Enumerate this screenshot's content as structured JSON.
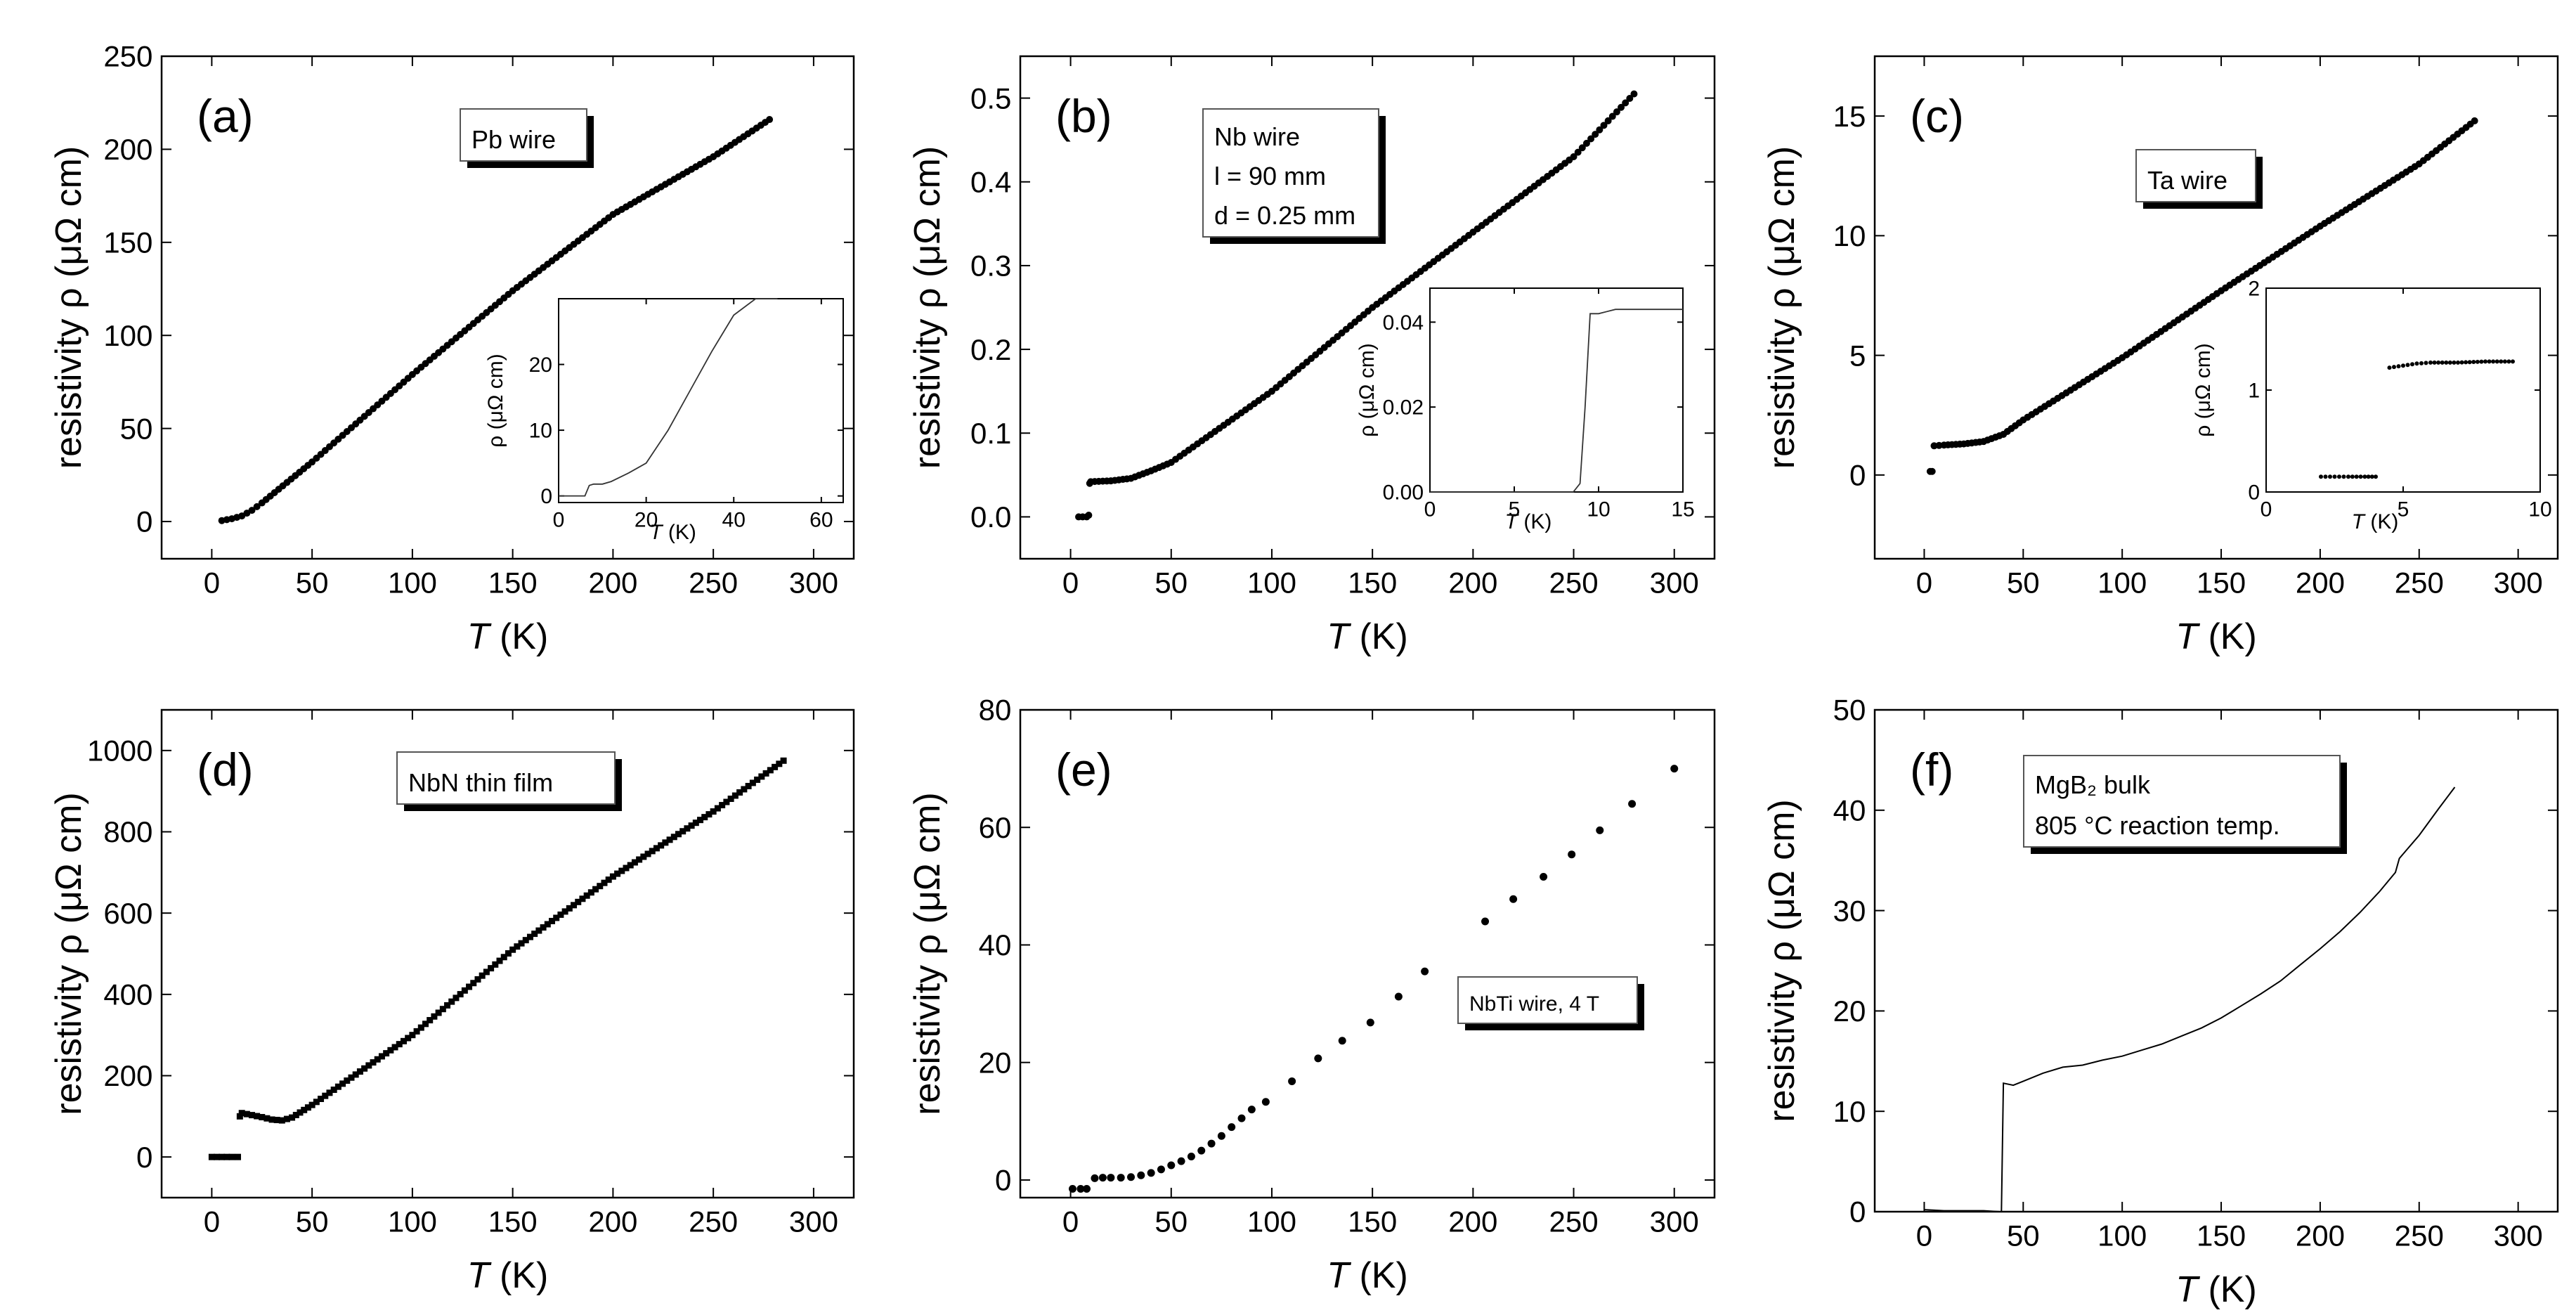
{
  "charts": [
    {
      "panel_label": "(a)",
      "legend_lines": [
        "Pb wire"
      ],
      "xlabel": "T",
      "xunit": "(K)",
      "ylabel": "resistivity ρ (μΩ cm)",
      "xlim": [
        -25,
        320
      ],
      "ylim": [
        -20,
        250
      ],
      "xticks": [
        0,
        50,
        100,
        150,
        200,
        250,
        300
      ],
      "yticks": [
        0,
        50,
        100,
        150,
        200,
        250
      ],
      "inset": {
        "xlim": [
          0,
          65
        ],
        "ylim": [
          -1,
          30
        ],
        "xticks": [
          0,
          20,
          40,
          60
        ],
        "yticks": [
          0,
          10,
          20
        ],
        "ylabel": "ρ (μΩ cm)",
        "xlabel": "T",
        "xunit": "(K)"
      }
    },
    {
      "panel_label": "(b)",
      "legend_lines": [
        "Nb wire",
        "l = 90 mm",
        "d = 0.25 mm"
      ],
      "xlabel": "T",
      "xunit": "(K)",
      "ylabel": "resistivity ρ (μΩ cm)",
      "xlim": [
        -25,
        320
      ],
      "ylim": [
        -0.05,
        0.55
      ],
      "xticks": [
        0,
        50,
        100,
        150,
        200,
        250,
        300
      ],
      "yticks": [
        "0.0",
        "0.1",
        "0.2",
        "0.3",
        "0.4",
        "0.5"
      ],
      "inset": {
        "xlim": [
          0,
          15
        ],
        "ylim": [
          0,
          0.048
        ],
        "xticks": [
          0,
          5,
          10,
          15
        ],
        "yticks": [
          "0.00",
          "0.02",
          "0.04"
        ],
        "ylabel": "ρ (μΩ cm)",
        "xlabel": "T",
        "xunit": "(K)"
      }
    },
    {
      "panel_label": "(c)",
      "legend_lines": [
        "Ta wire"
      ],
      "xlabel": "T",
      "xunit": "(K)",
      "ylabel": "resistivity ρ (μΩ cm)",
      "xlim": [
        -25,
        320
      ],
      "ylim": [
        -3.5,
        17.5
      ],
      "xticks": [
        0,
        50,
        100,
        150,
        200,
        250,
        300
      ],
      "yticks": [
        0,
        5,
        10,
        15
      ],
      "inset": {
        "xlim": [
          0,
          10
        ],
        "ylim": [
          0,
          2
        ],
        "xticks": [
          0,
          5,
          10
        ],
        "yticks": [
          0,
          1,
          2
        ],
        "ylabel": "ρ (μΩ cm)",
        "xlabel": "T",
        "xunit": "(K)"
      }
    },
    {
      "panel_label": "(d)",
      "legend_lines": [
        "NbN thin film"
      ],
      "xlabel": "T",
      "xunit": "(K)",
      "ylabel": "resistivity ρ (μΩ cm)",
      "xlim": [
        -25,
        320
      ],
      "ylim": [
        -100,
        1100
      ],
      "xticks": [
        0,
        50,
        100,
        150,
        200,
        250,
        300
      ],
      "yticks": [
        0,
        200,
        400,
        600,
        800,
        1000
      ]
    },
    {
      "panel_label": "(e)",
      "legend_lines": [
        "NbTi wire, 4 T"
      ],
      "xlabel": "T",
      "xunit": "(K)",
      "ylabel": "resistivity ρ (μΩ cm)",
      "xlim": [
        -25,
        320
      ],
      "ylim": [
        -3,
        80
      ],
      "xticks": [
        0,
        50,
        100,
        150,
        200,
        250,
        300
      ],
      "yticks": [
        0,
        20,
        40,
        60,
        80
      ]
    },
    {
      "panel_label": "(f)",
      "legend_lines": [
        "MgB₂ bulk",
        "805 °C reaction temp."
      ],
      "xlabel": "T",
      "xunit": "(K)",
      "ylabel": "resistivity ρ (μΩ cm)",
      "xlim": [
        -25,
        320
      ],
      "ylim": [
        0,
        50
      ],
      "xticks": [
        0,
        50,
        100,
        150,
        200,
        250,
        300
      ],
      "yticks": [
        0,
        10,
        20,
        30,
        40,
        50
      ]
    }
  ],
  "chart_data": [
    {
      "type": "scatter",
      "panel": "(a)",
      "series": [
        {
          "x": [
            5,
            10,
            15,
            20,
            25,
            50,
            100,
            150,
            200,
            250,
            278
          ],
          "y": [
            0.5,
            1.5,
            3,
            6,
            10,
            32,
            79,
            124,
            165,
            196,
            216
          ]
        }
      ],
      "inset": {
        "type": "line",
        "x": [
          0,
          6,
          7,
          8,
          10,
          12,
          16,
          20,
          25,
          30,
          35,
          40,
          45,
          50
        ],
        "y": [
          0,
          0,
          1.6,
          1.8,
          1.8,
          2.2,
          3.5,
          5,
          10,
          16,
          22,
          27.5,
          30,
          30
        ]
      }
    },
    {
      "type": "scatter",
      "panel": "(b)",
      "series": [
        {
          "x": [
            4,
            6,
            8,
            9,
            9.5,
            10,
            20,
            30,
            40,
            50,
            100,
            150,
            200,
            250,
            280
          ],
          "y": [
            0,
            0,
            0,
            0.002,
            0.04,
            0.042,
            0.043,
            0.046,
            0.055,
            0.065,
            0.15,
            0.25,
            0.34,
            0.43,
            0.505
          ]
        }
      ],
      "inset": {
        "type": "line",
        "x": [
          0,
          8.5,
          8.9,
          9.2,
          9.5,
          10,
          11,
          12,
          13,
          14,
          15
        ],
        "y": [
          0,
          0,
          0.002,
          0.02,
          0.042,
          0.042,
          0.043,
          0.043,
          0.043,
          0.043,
          0.043
        ]
      }
    },
    {
      "type": "scatter",
      "panel": "(c)",
      "series": [
        {
          "x": [
            3,
            4,
            5,
            10,
            20,
            30,
            40,
            50,
            100,
            150,
            200,
            250,
            278
          ],
          "y": [
            0.15,
            0.15,
            1.22,
            1.25,
            1.3,
            1.4,
            1.7,
            2.3,
            4.9,
            7.7,
            10.4,
            13,
            14.8
          ]
        }
      ],
      "inset": {
        "type": "scatter",
        "x": [
          2,
          2.5,
          3,
          3.3,
          3.6,
          4,
          4.5,
          5,
          5.5,
          6,
          7,
          8,
          9
        ],
        "y": [
          0.15,
          0.15,
          0.15,
          0.15,
          0.15,
          0.15,
          1.22,
          1.24,
          1.26,
          1.27,
          1.27,
          1.28,
          1.28
        ]
      }
    },
    {
      "type": "scatter",
      "panel": "(d)",
      "series": [
        {
          "x": [
            0,
            5,
            10,
            13,
            14,
            15,
            20,
            25,
            30,
            35,
            40,
            50,
            100,
            150,
            200,
            250,
            285
          ],
          "y": [
            0,
            0,
            0,
            0,
            100,
            108,
            103,
            98,
            92,
            90,
            97,
            128,
            300,
            510,
            690,
            850,
            975
          ]
        }
      ]
    },
    {
      "type": "scatter",
      "panel": "(e)",
      "series": [
        {
          "x": [
            1,
            5,
            8,
            12,
            16,
            20,
            25,
            30,
            35,
            40,
            45,
            50,
            55,
            60,
            65,
            70,
            75,
            80,
            85,
            90,
            97,
            110,
            123,
            135,
            149,
            163,
            176,
            206,
            220,
            235,
            249,
            263,
            279,
            300
          ],
          "y": [
            -1.5,
            -1.5,
            -1.5,
            0.3,
            0.4,
            0.4,
            0.4,
            0.5,
            0.8,
            1.2,
            1.8,
            2.5,
            3.2,
            4,
            5,
            6.2,
            7.5,
            9,
            10.5,
            12,
            13.3,
            16.8,
            20.7,
            23.7,
            26.8,
            31.2,
            35.5,
            44,
            47.8,
            51.6,
            55.4,
            59.5,
            64,
            70
          ]
        }
      ]
    },
    {
      "type": "line",
      "panel": "(f)",
      "series": [
        {
          "x": [
            0,
            10,
            20,
            30,
            38,
            39,
            40,
            45,
            50,
            60,
            70,
            80,
            90,
            100,
            110,
            120,
            130,
            140,
            150,
            160,
            170,
            180,
            190,
            200,
            210,
            220,
            230,
            238,
            240,
            250,
            260,
            268
          ],
          "y": [
            0.2,
            0.1,
            0.1,
            0.1,
            0,
            0,
            12.8,
            12.6,
            13,
            13.8,
            14.4,
            14.6,
            15.1,
            15.5,
            16.1,
            16.7,
            17.5,
            18.3,
            19.3,
            20.5,
            21.7,
            23,
            24.6,
            26.2,
            27.9,
            29.8,
            31.9,
            33.8,
            35.2,
            37.5,
            40.2,
            42.3
          ]
        }
      ]
    }
  ]
}
